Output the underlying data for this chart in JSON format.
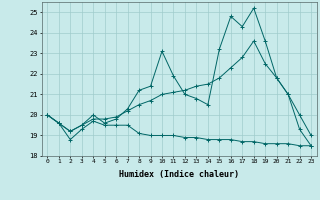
{
  "xlabel": "Humidex (Indice chaleur)",
  "ylabel": "",
  "xlim": [
    -0.5,
    23.5
  ],
  "ylim": [
    18,
    25.5
  ],
  "yticks": [
    18,
    19,
    20,
    21,
    22,
    23,
    24,
    25
  ],
  "xticks": [
    0,
    1,
    2,
    3,
    4,
    5,
    6,
    7,
    8,
    9,
    10,
    11,
    12,
    13,
    14,
    15,
    16,
    17,
    18,
    19,
    20,
    21,
    22,
    23
  ],
  "bg_color": "#c8eaea",
  "grid_color": "#a0cccc",
  "line_color": "#006666",
  "line1_y": [
    20.0,
    19.6,
    18.8,
    19.3,
    19.7,
    19.5,
    19.5,
    19.5,
    19.1,
    19.0,
    19.0,
    19.0,
    18.9,
    18.9,
    18.8,
    18.8,
    18.8,
    18.7,
    18.7,
    18.6,
    18.6,
    18.6,
    18.5,
    18.5
  ],
  "line2_y": [
    20.0,
    19.6,
    19.2,
    19.5,
    20.0,
    19.6,
    19.8,
    20.3,
    21.2,
    21.4,
    23.1,
    21.9,
    21.0,
    20.8,
    20.5,
    23.2,
    24.8,
    24.3,
    25.2,
    23.6,
    21.8,
    21.0,
    19.3,
    18.5
  ],
  "line3_y": [
    20.0,
    19.6,
    19.2,
    19.5,
    19.8,
    19.8,
    19.9,
    20.2,
    20.5,
    20.7,
    21.0,
    21.1,
    21.2,
    21.4,
    21.5,
    21.8,
    22.3,
    22.8,
    23.6,
    22.5,
    21.8,
    21.0,
    20.0,
    19.0
  ]
}
